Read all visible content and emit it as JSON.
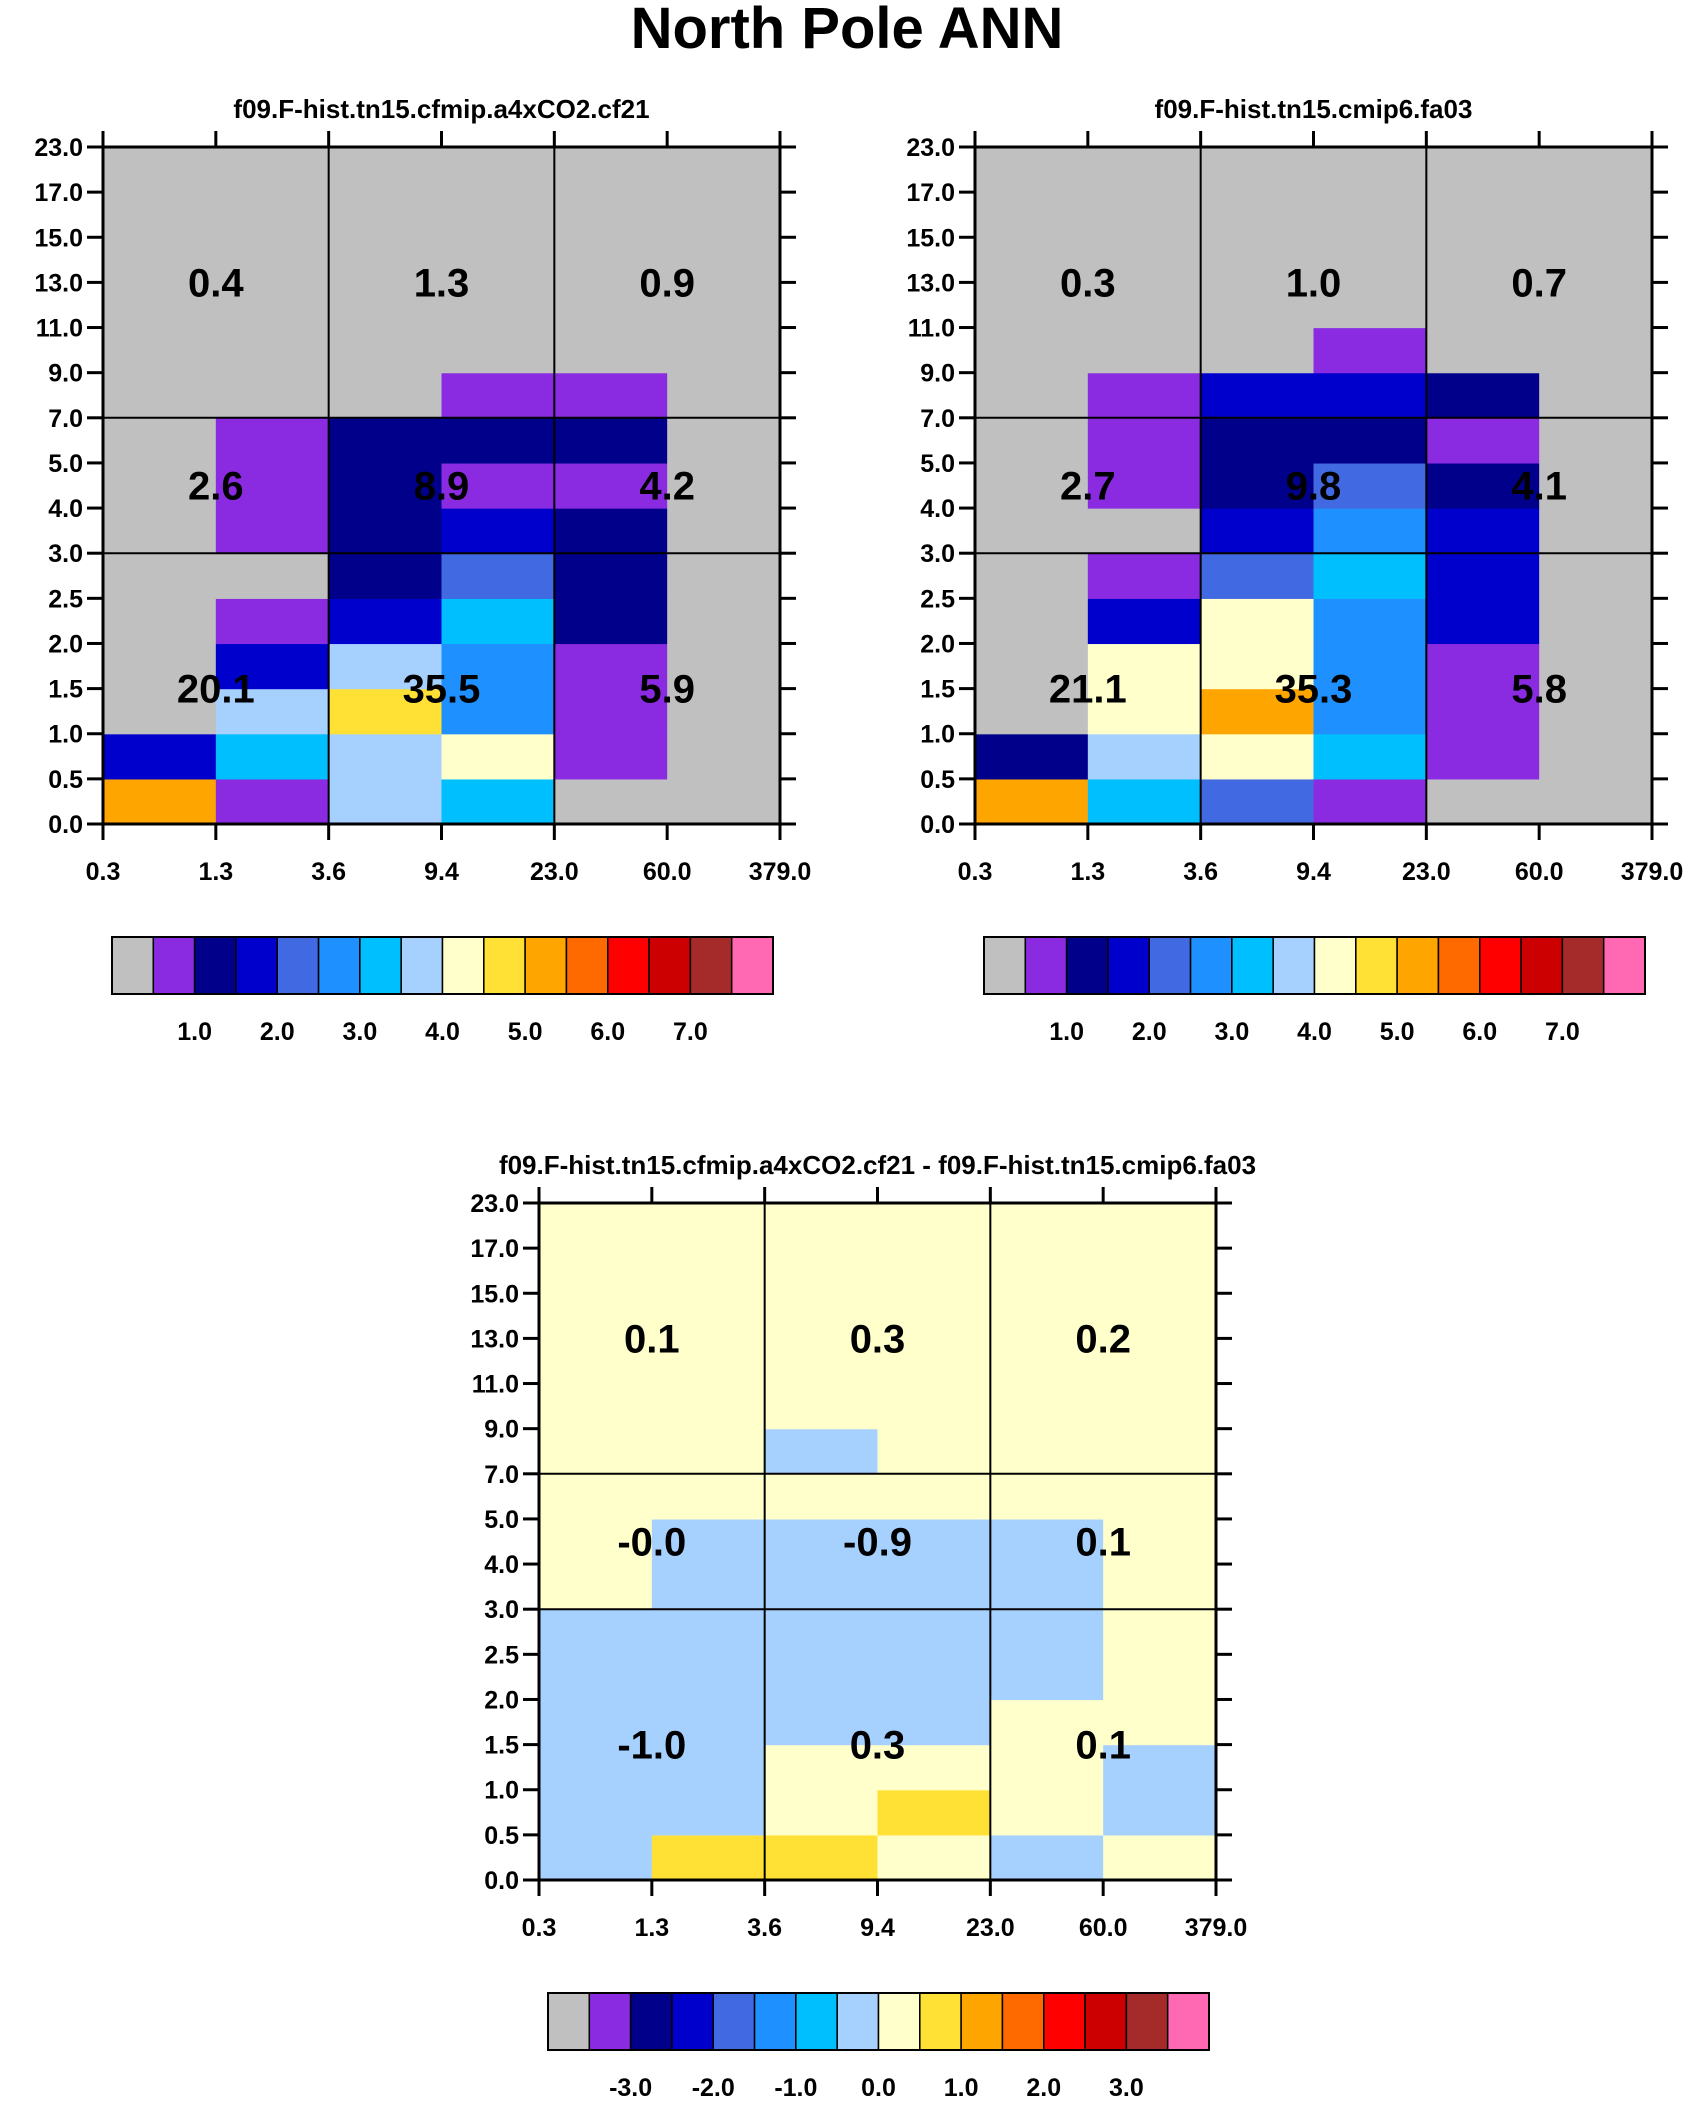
{
  "figure_title": "North Pole ANN",
  "colors": {
    "gray": "#C0C0C0",
    "palette": [
      "#C0C0C0",
      "#8A2BE2",
      "#00008B",
      "#0000CD",
      "#4169E1",
      "#1E90FF",
      "#00BFFF",
      "#A6D1FF",
      "#FFFFCC",
      "#FFE135",
      "#FFA500",
      "#FF6A00",
      "#FF0000",
      "#CC0000",
      "#A52A2A",
      "#FF69B4"
    ],
    "diff_bg": "#FFFFCC"
  },
  "chart_data": [
    {
      "type": "heatmap",
      "title": "f09.F-hist.tn15.cfmip.a4xCO2.cf21",
      "x_tick_labels": [
        "0.3",
        "1.3",
        "3.6",
        "9.4",
        "23.0",
        "60.0",
        "379.0"
      ],
      "y_tick_labels": [
        "0.0",
        "0.5",
        "1.0",
        "1.5",
        "2.0",
        "2.5",
        "3.0",
        "4.0",
        "5.0",
        "7.0",
        "9.0",
        "11.0",
        "13.0",
        "15.0",
        "17.0",
        "23.0"
      ],
      "grid_values": [
        [
          "10",
          "1",
          "7",
          "6",
          "0",
          "0"
        ],
        [
          "3",
          "6",
          "7",
          "8",
          "1",
          "0"
        ],
        [
          "0",
          "7",
          "9",
          "5",
          "1",
          "0"
        ],
        [
          "0",
          "3",
          "7",
          "5",
          "1",
          "0"
        ],
        [
          "0",
          "1",
          "3",
          "6",
          "2",
          "0"
        ],
        [
          "0",
          "0",
          "2",
          "4",
          "2",
          "0"
        ],
        [
          "0",
          "1",
          "2",
          "3",
          "2",
          "0"
        ],
        [
          "0",
          "1",
          "2",
          "1",
          "1",
          "0"
        ],
        [
          "0",
          "1",
          "2",
          "2",
          "2",
          "0"
        ],
        [
          "0",
          "0",
          "0",
          "1",
          "1",
          "0"
        ],
        [
          "0",
          "0",
          "0",
          "0",
          "0",
          "0"
        ],
        [
          "0",
          "0",
          "0",
          "0",
          "0",
          "0"
        ],
        [
          "0",
          "0",
          "0",
          "0",
          "0",
          "0"
        ],
        [
          "0",
          "0",
          "0",
          "0",
          "0",
          "0"
        ],
        [
          "0",
          "0",
          "0",
          "0",
          "0",
          "0"
        ]
      ],
      "box_values": [
        [
          "0.4",
          "1.3",
          "0.9"
        ],
        [
          "2.6",
          "8.9",
          "4.2"
        ],
        [
          "20.1",
          "35.5",
          "5.9"
        ]
      ],
      "colorbar_labels": [
        "1.0",
        "2.0",
        "3.0",
        "4.0",
        "5.0",
        "6.0",
        "7.0"
      ]
    },
    {
      "type": "heatmap",
      "title": "f09.F-hist.tn15.cmip6.fa03",
      "x_tick_labels": [
        "0.3",
        "1.3",
        "3.6",
        "9.4",
        "23.0",
        "60.0",
        "379.0"
      ],
      "y_tick_labels": [
        "0.0",
        "0.5",
        "1.0",
        "1.5",
        "2.0",
        "2.5",
        "3.0",
        "4.0",
        "5.0",
        "7.0",
        "9.0",
        "11.0",
        "13.0",
        "15.0",
        "17.0",
        "23.0"
      ],
      "grid_values": [
        [
          "10",
          "6",
          "4",
          "1",
          "0",
          "0"
        ],
        [
          "2",
          "7",
          "8",
          "6",
          "1",
          "0"
        ],
        [
          "0",
          "8",
          "10",
          "5",
          "1",
          "0"
        ],
        [
          "0",
          "8",
          "8",
          "5",
          "1",
          "0"
        ],
        [
          "0",
          "3",
          "8",
          "5",
          "3",
          "0"
        ],
        [
          "0",
          "1",
          "4",
          "6",
          "3",
          "0"
        ],
        [
          "0",
          "0",
          "3",
          "5",
          "3",
          "0"
        ],
        [
          "0",
          "1",
          "2",
          "4",
          "2",
          "0"
        ],
        [
          "0",
          "1",
          "2",
          "2",
          "1",
          "0"
        ],
        [
          "0",
          "1",
          "3",
          "3",
          "2",
          "0"
        ],
        [
          "0",
          "0",
          "0",
          "1",
          "0",
          "0"
        ],
        [
          "0",
          "0",
          "0",
          "0",
          "0",
          "0"
        ],
        [
          "0",
          "0",
          "0",
          "0",
          "0",
          "0"
        ],
        [
          "0",
          "0",
          "0",
          "0",
          "0",
          "0"
        ],
        [
          "0",
          "0",
          "0",
          "0",
          "0",
          "0"
        ]
      ],
      "box_values": [
        [
          "0.3",
          "1.0",
          "0.7"
        ],
        [
          "2.7",
          "9.8",
          "4.1"
        ],
        [
          "21.1",
          "35.3",
          "5.8"
        ]
      ],
      "colorbar_labels": [
        "1.0",
        "2.0",
        "3.0",
        "4.0",
        "5.0",
        "6.0",
        "7.0"
      ]
    },
    {
      "type": "heatmap",
      "title": "f09.F-hist.tn15.cfmip.a4xCO2.cf21 - f09.F-hist.tn15.cmip6.fa03",
      "x_tick_labels": [
        "0.3",
        "1.3",
        "3.6",
        "9.4",
        "23.0",
        "60.0",
        "379.0"
      ],
      "y_tick_labels": [
        "0.0",
        "0.5",
        "1.0",
        "1.5",
        "2.0",
        "2.5",
        "3.0",
        "4.0",
        "5.0",
        "7.0",
        "9.0",
        "11.0",
        "13.0",
        "15.0",
        "17.0",
        "23.0"
      ],
      "grid_values": [
        [
          "7",
          "9",
          "9",
          "8",
          "7",
          "8"
        ],
        [
          "7",
          "7",
          "8",
          "9",
          "8",
          "7"
        ],
        [
          "7",
          "7",
          "8",
          "8",
          "8",
          "7"
        ],
        [
          "7",
          "7",
          "7",
          "7",
          "8",
          "8"
        ],
        [
          "7",
          "7",
          "7",
          "7",
          "7",
          "8"
        ],
        [
          "7",
          "7",
          "7",
          "7",
          "7",
          "8"
        ],
        [
          "8",
          "7",
          "7",
          "7",
          "7",
          "8"
        ],
        [
          "8",
          "7",
          "7",
          "7",
          "7",
          "8"
        ],
        [
          "8",
          "8",
          "8",
          "8",
          "8",
          "8"
        ],
        [
          "8",
          "8",
          "7",
          "8",
          "8",
          "8"
        ],
        [
          "8",
          "8",
          "8",
          "8",
          "8",
          "8"
        ],
        [
          "8",
          "8",
          "8",
          "8",
          "8",
          "8"
        ],
        [
          "8",
          "8",
          "8",
          "8",
          "8",
          "8"
        ],
        [
          "8",
          "8",
          "8",
          "8",
          "8",
          "8"
        ],
        [
          "8",
          "8",
          "8",
          "8",
          "8",
          "8"
        ]
      ],
      "box_values": [
        [
          "0.1",
          "0.3",
          "0.2"
        ],
        [
          "-0.0",
          "-0.9",
          "0.1"
        ],
        [
          "-1.0",
          "0.3",
          "0.1"
        ]
      ],
      "colorbar_labels": [
        "-3.0",
        "-2.0",
        "-1.0",
        "0.0",
        "1.0",
        "2.0",
        "3.0"
      ]
    }
  ]
}
